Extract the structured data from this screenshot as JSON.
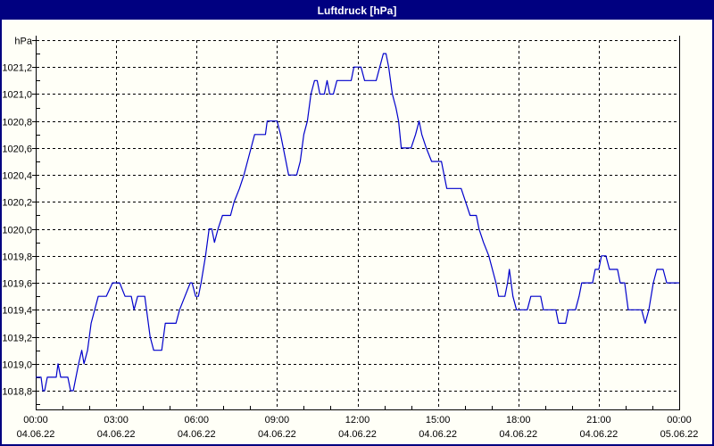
{
  "window": {
    "title": "Luftdruck [hPa]"
  },
  "colors": {
    "titlebar": "#000080",
    "title_text": "#FFFFFF",
    "background": "#FFFFF7",
    "axis": "#000000",
    "grid": "#000000",
    "line": "#0000CC"
  },
  "chart_data": {
    "type": "line",
    "title": "Luftdruck [hPa]",
    "ylabel": "hPa",
    "xlabel": "",
    "grid": "dashed, on",
    "legend": "none",
    "y_axis": {
      "unit_label": "hPa",
      "tick_step": 0.2,
      "minor_tick_step": 0.1,
      "plot_top_value": 1021.4,
      "plot_bottom_value": 1018.66,
      "decimal_separator": ","
    },
    "y_gridlines": [
      {
        "value": 1021.4,
        "label": "hPa"
      },
      {
        "value": 1021.2,
        "label": "1021,2"
      },
      {
        "value": 1021.0,
        "label": "1021,0"
      },
      {
        "value": 1020.8,
        "label": "1020,8"
      },
      {
        "value": 1020.6,
        "label": "1020,6"
      },
      {
        "value": 1020.4,
        "label": "1020,4"
      },
      {
        "value": 1020.2,
        "label": "1020,2"
      },
      {
        "value": 1020.0,
        "label": "1020,0"
      },
      {
        "value": 1019.8,
        "label": "1019,8"
      },
      {
        "value": 1019.6,
        "label": "1019,6"
      },
      {
        "value": 1019.4,
        "label": "1019,4"
      },
      {
        "value": 1019.2,
        "label": "1019,2"
      },
      {
        "value": 1019.0,
        "label": "1019,0"
      },
      {
        "value": 1018.8,
        "label": "1018,8"
      }
    ],
    "x_axis": {
      "range_hours": [
        0,
        24
      ],
      "major_tick_hours": 3,
      "minor_tick_hours": 1
    },
    "x_ticks": [
      {
        "hour": 0,
        "time": "00:00",
        "date": "04.06.22"
      },
      {
        "hour": 3,
        "time": "03:00",
        "date": "04.06.22"
      },
      {
        "hour": 6,
        "time": "06:00",
        "date": "04.06.22"
      },
      {
        "hour": 9,
        "time": "09:00",
        "date": "04.06.22"
      },
      {
        "hour": 12,
        "time": "12:00",
        "date": "04.06.22"
      },
      {
        "hour": 15,
        "time": "15:00",
        "date": "04.06.22"
      },
      {
        "hour": 18,
        "time": "18:00",
        "date": "04.06.22"
      },
      {
        "hour": 21,
        "time": "21:00",
        "date": "04.06.22"
      },
      {
        "hour": 24,
        "time": "00:00",
        "date": "05.06.22"
      }
    ],
    "series": [
      {
        "name": "Luftdruck",
        "unit": "hPa",
        "points_t_minutes_value": [
          [
            0,
            1018.9
          ],
          [
            12,
            1018.9
          ],
          [
            16,
            1018.8
          ],
          [
            20,
            1018.8
          ],
          [
            26,
            1018.9
          ],
          [
            46,
            1018.9
          ],
          [
            50,
            1019.0
          ],
          [
            56,
            1018.9
          ],
          [
            72,
            1018.9
          ],
          [
            78,
            1018.8
          ],
          [
            84,
            1018.8
          ],
          [
            90,
            1018.9
          ],
          [
            96,
            1019.0
          ],
          [
            103,
            1019.1
          ],
          [
            108,
            1019.0
          ],
          [
            116,
            1019.1
          ],
          [
            124,
            1019.3
          ],
          [
            140,
            1019.5
          ],
          [
            158,
            1019.5
          ],
          [
            172,
            1019.6
          ],
          [
            188,
            1019.6
          ],
          [
            200,
            1019.5
          ],
          [
            214,
            1019.5
          ],
          [
            220,
            1019.4
          ],
          [
            228,
            1019.5
          ],
          [
            244,
            1019.5
          ],
          [
            252,
            1019.3
          ],
          [
            256,
            1019.2
          ],
          [
            264,
            1019.1
          ],
          [
            282,
            1019.1
          ],
          [
            290,
            1019.3
          ],
          [
            314,
            1019.3
          ],
          [
            322,
            1019.4
          ],
          [
            334,
            1019.5
          ],
          [
            346,
            1019.6
          ],
          [
            350,
            1019.6
          ],
          [
            358,
            1019.5
          ],
          [
            364,
            1019.5
          ],
          [
            370,
            1019.6
          ],
          [
            380,
            1019.8
          ],
          [
            388,
            1020.0
          ],
          [
            394,
            1020.0
          ],
          [
            400,
            1019.9
          ],
          [
            408,
            1020.0
          ],
          [
            418,
            1020.1
          ],
          [
            436,
            1020.1
          ],
          [
            444,
            1020.2
          ],
          [
            456,
            1020.3
          ],
          [
            466,
            1020.4
          ],
          [
            474,
            1020.5
          ],
          [
            482,
            1020.6
          ],
          [
            490,
            1020.7
          ],
          [
            514,
            1020.7
          ],
          [
            518,
            1020.8
          ],
          [
            540,
            1020.8
          ],
          [
            548,
            1020.7
          ],
          [
            554,
            1020.6
          ],
          [
            560,
            1020.5
          ],
          [
            566,
            1020.4
          ],
          [
            584,
            1020.4
          ],
          [
            592,
            1020.5
          ],
          [
            600,
            1020.7
          ],
          [
            608,
            1020.8
          ],
          [
            616,
            1021.0
          ],
          [
            624,
            1021.1
          ],
          [
            630,
            1021.1
          ],
          [
            636,
            1021.0
          ],
          [
            646,
            1021.0
          ],
          [
            652,
            1021.1
          ],
          [
            658,
            1021.0
          ],
          [
            666,
            1021.0
          ],
          [
            674,
            1021.1
          ],
          [
            706,
            1021.1
          ],
          [
            712,
            1021.2
          ],
          [
            728,
            1021.2
          ],
          [
            736,
            1021.1
          ],
          [
            762,
            1021.1
          ],
          [
            770,
            1021.2
          ],
          [
            778,
            1021.3
          ],
          [
            784,
            1021.3
          ],
          [
            790,
            1021.2
          ],
          [
            798,
            1021.0
          ],
          [
            806,
            1020.9
          ],
          [
            812,
            1020.8
          ],
          [
            818,
            1020.6
          ],
          [
            840,
            1020.6
          ],
          [
            850,
            1020.7
          ],
          [
            858,
            1020.8
          ],
          [
            864,
            1020.7
          ],
          [
            874,
            1020.6
          ],
          [
            886,
            1020.5
          ],
          [
            908,
            1020.5
          ],
          [
            914,
            1020.4
          ],
          [
            920,
            1020.3
          ],
          [
            952,
            1020.3
          ],
          [
            962,
            1020.2
          ],
          [
            972,
            1020.1
          ],
          [
            986,
            1020.1
          ],
          [
            992,
            1020.0
          ],
          [
            1002,
            1019.9
          ],
          [
            1014,
            1019.8
          ],
          [
            1022,
            1019.7
          ],
          [
            1030,
            1019.6
          ],
          [
            1036,
            1019.5
          ],
          [
            1050,
            1019.5
          ],
          [
            1056,
            1019.6
          ],
          [
            1060,
            1019.7
          ],
          [
            1068,
            1019.5
          ],
          [
            1076,
            1019.4
          ],
          [
            1100,
            1019.4
          ],
          [
            1108,
            1019.5
          ],
          [
            1130,
            1019.5
          ],
          [
            1136,
            1019.4
          ],
          [
            1164,
            1019.4
          ],
          [
            1170,
            1019.3
          ],
          [
            1186,
            1019.3
          ],
          [
            1192,
            1019.4
          ],
          [
            1208,
            1019.4
          ],
          [
            1216,
            1019.5
          ],
          [
            1222,
            1019.6
          ],
          [
            1246,
            1019.6
          ],
          [
            1252,
            1019.7
          ],
          [
            1260,
            1019.7
          ],
          [
            1266,
            1019.8
          ],
          [
            1276,
            1019.8
          ],
          [
            1284,
            1019.7
          ],
          [
            1302,
            1019.7
          ],
          [
            1308,
            1019.6
          ],
          [
            1318,
            1019.6
          ],
          [
            1326,
            1019.4
          ],
          [
            1356,
            1019.4
          ],
          [
            1364,
            1019.3
          ],
          [
            1372,
            1019.4
          ],
          [
            1382,
            1019.6
          ],
          [
            1390,
            1019.7
          ],
          [
            1404,
            1019.7
          ],
          [
            1412,
            1019.6
          ],
          [
            1440,
            1019.6
          ]
        ]
      }
    ]
  }
}
